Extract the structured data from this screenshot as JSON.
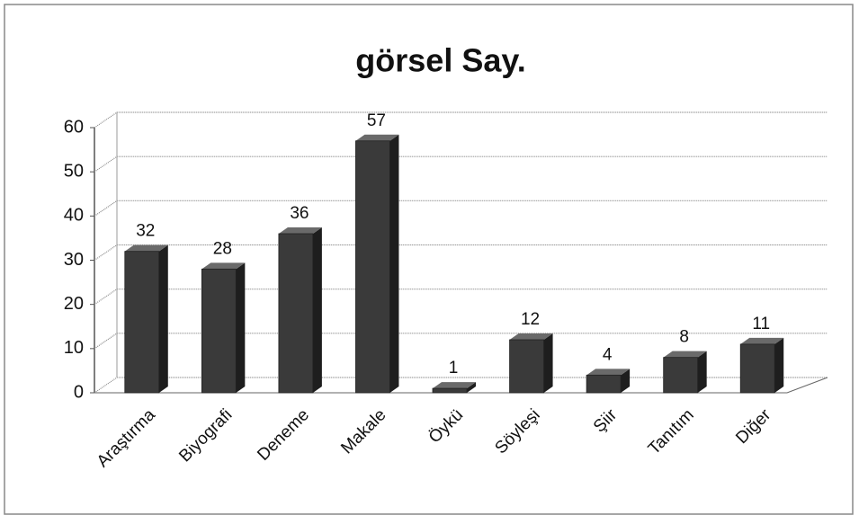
{
  "chart_data": {
    "type": "bar",
    "title": "görsel Say.",
    "categories": [
      "Araştırma",
      "Biyografi",
      "Deneme",
      "Makale",
      "Öykü",
      "Söyleşi",
      "Şiir",
      "Tanıtım",
      "Diğer"
    ],
    "values": [
      32,
      28,
      36,
      57,
      1,
      12,
      4,
      8,
      11
    ],
    "color": "#3a3a3a",
    "ylim": [
      0,
      60
    ],
    "yticks": [
      0,
      10,
      20,
      30,
      40,
      50,
      60
    ],
    "grid": true
  }
}
